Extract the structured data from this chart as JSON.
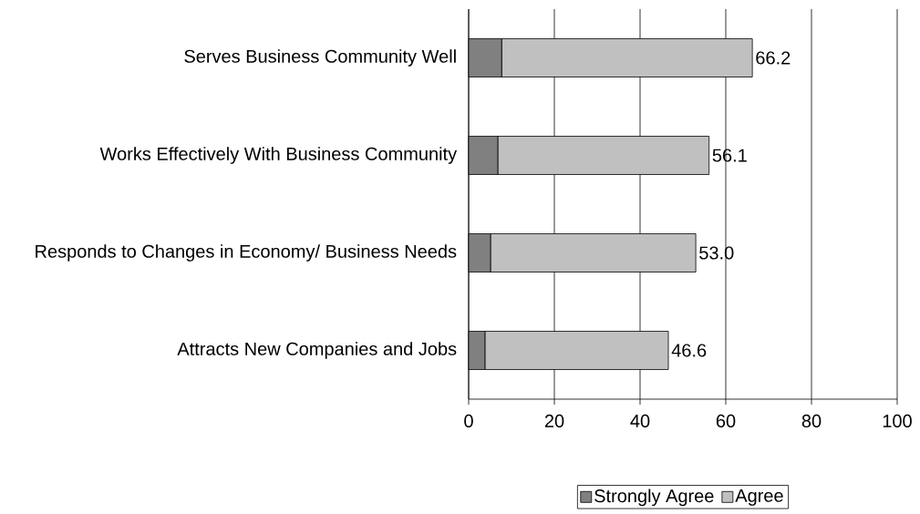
{
  "chart_data": {
    "type": "bar",
    "orientation": "horizontal",
    "stacked": true,
    "categories": [
      "Serves Business Community Well",
      "Works Effectively With Business Community",
      "Responds to Changes in Economy/ Business Needs",
      "Attracts New Companies and Jobs"
    ],
    "series": [
      {
        "name": "Strongly Agree",
        "color": "#808080",
        "values": [
          7.7,
          6.8,
          5.1,
          3.8
        ]
      },
      {
        "name": "Agree",
        "color": "#c0c0c0",
        "values": [
          58.5,
          49.3,
          47.9,
          42.8
        ]
      }
    ],
    "totals": [
      "66.2",
      "56.1",
      "53.0",
      "46.6"
    ],
    "xlim": [
      0,
      100
    ],
    "xticks": [
      0,
      20,
      40,
      60,
      80,
      100
    ],
    "grid": "x",
    "legend": "bottom"
  }
}
